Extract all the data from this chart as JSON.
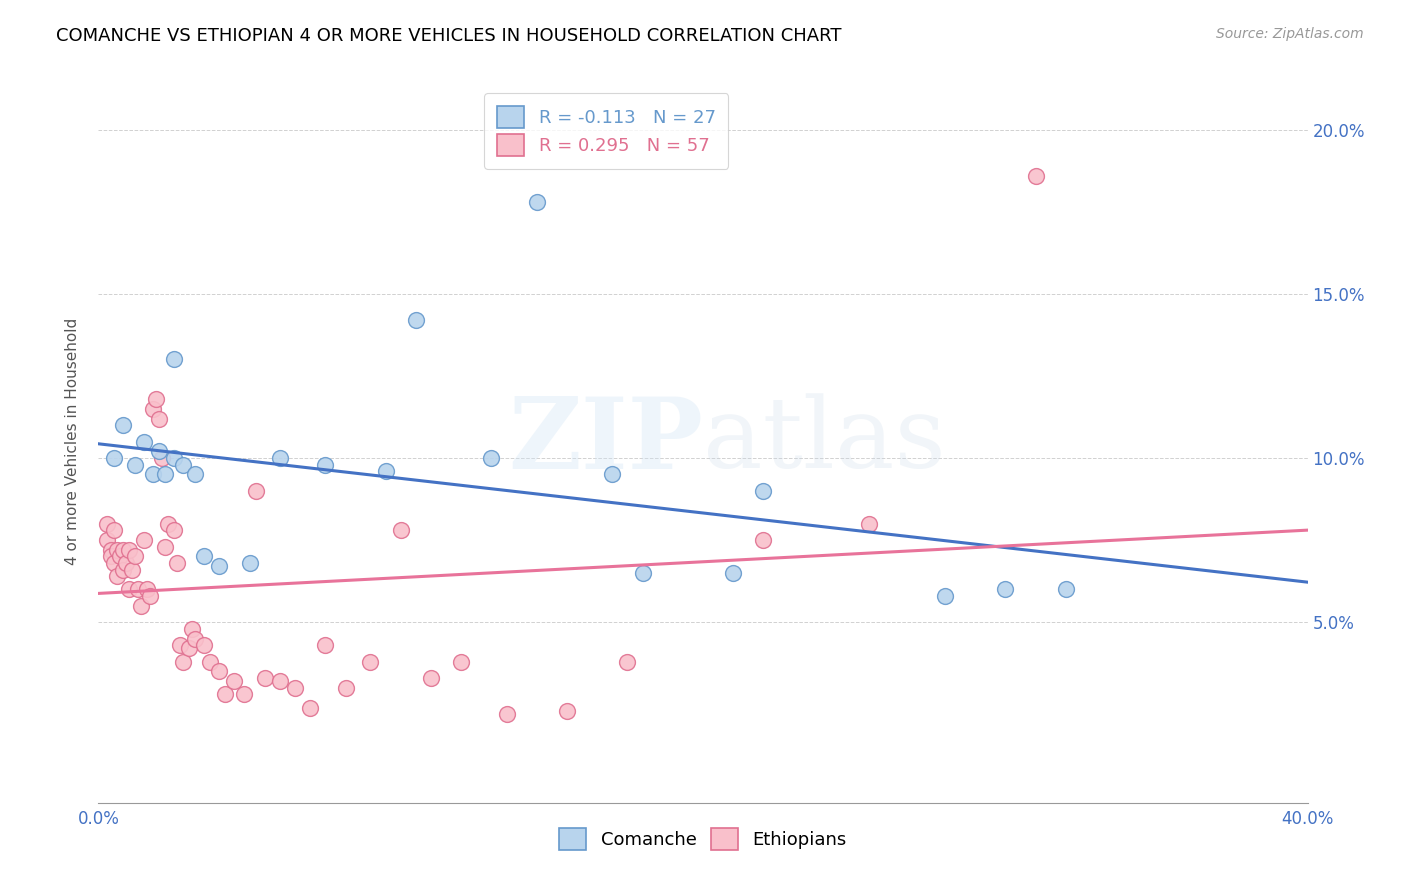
{
  "title": "COMANCHE VS ETHIOPIAN 4 OR MORE VEHICLES IN HOUSEHOLD CORRELATION CHART",
  "source": "Source: ZipAtlas.com",
  "ylabel": "4 or more Vehicles in Household",
  "xlim": [
    0.0,
    0.4
  ],
  "ylim": [
    -0.005,
    0.215
  ],
  "xticks": [
    0.0,
    0.05,
    0.1,
    0.15,
    0.2,
    0.25,
    0.3,
    0.35,
    0.4
  ],
  "xtick_labels_show": [
    "0.0%",
    "",
    "",
    "",
    "",
    "",
    "",
    "",
    "40.0%"
  ],
  "yticks": [
    0.05,
    0.1,
    0.15,
    0.2
  ],
  "ytick_labels": [
    "5.0%",
    "10.0%",
    "15.0%",
    "20.0%"
  ],
  "watermark_zip": "ZIP",
  "watermark_atlas": "atlas",
  "comanche_color": "#b8d4ed",
  "comanche_edge": "#6699cc",
  "ethiopian_color": "#f9c0cb",
  "ethiopian_edge": "#e07090",
  "trend_comanche_color": "#4472c4",
  "trend_ethiopian_color": "#e8739a",
  "legend_label_comanche": "R = -0.113   N = 27",
  "legend_label_ethiopian": "R = 0.295   N = 57",
  "bottom_label_comanche": "Comanche",
  "bottom_label_ethiopian": "Ethiopians",
  "comanche_x": [
    0.005,
    0.008,
    0.012,
    0.015,
    0.018,
    0.02,
    0.022,
    0.025,
    0.025,
    0.028,
    0.032,
    0.035,
    0.04,
    0.05,
    0.06,
    0.075,
    0.095,
    0.105,
    0.13,
    0.145,
    0.17,
    0.18,
    0.21,
    0.22,
    0.28,
    0.3,
    0.32
  ],
  "comanche_y": [
    0.1,
    0.11,
    0.098,
    0.105,
    0.095,
    0.102,
    0.095,
    0.1,
    0.13,
    0.098,
    0.095,
    0.07,
    0.067,
    0.068,
    0.1,
    0.098,
    0.096,
    0.142,
    0.1,
    0.178,
    0.095,
    0.065,
    0.065,
    0.09,
    0.058,
    0.06,
    0.06
  ],
  "ethiopian_x": [
    0.003,
    0.003,
    0.004,
    0.004,
    0.005,
    0.005,
    0.006,
    0.006,
    0.007,
    0.008,
    0.008,
    0.009,
    0.01,
    0.01,
    0.011,
    0.012,
    0.013,
    0.014,
    0.015,
    0.016,
    0.017,
    0.018,
    0.019,
    0.02,
    0.021,
    0.022,
    0.023,
    0.025,
    0.026,
    0.027,
    0.028,
    0.03,
    0.031,
    0.032,
    0.035,
    0.037,
    0.04,
    0.042,
    0.045,
    0.048,
    0.052,
    0.055,
    0.06,
    0.065,
    0.07,
    0.075,
    0.082,
    0.09,
    0.1,
    0.11,
    0.12,
    0.135,
    0.155,
    0.175,
    0.22,
    0.255,
    0.31
  ],
  "ethiopian_y": [
    0.075,
    0.08,
    0.072,
    0.07,
    0.078,
    0.068,
    0.072,
    0.064,
    0.07,
    0.072,
    0.066,
    0.068,
    0.072,
    0.06,
    0.066,
    0.07,
    0.06,
    0.055,
    0.075,
    0.06,
    0.058,
    0.115,
    0.118,
    0.112,
    0.1,
    0.073,
    0.08,
    0.078,
    0.068,
    0.043,
    0.038,
    0.042,
    0.048,
    0.045,
    0.043,
    0.038,
    0.035,
    0.028,
    0.032,
    0.028,
    0.09,
    0.033,
    0.032,
    0.03,
    0.024,
    0.043,
    0.03,
    0.038,
    0.078,
    0.033,
    0.038,
    0.022,
    0.023,
    0.038,
    0.075,
    0.08,
    0.186
  ]
}
